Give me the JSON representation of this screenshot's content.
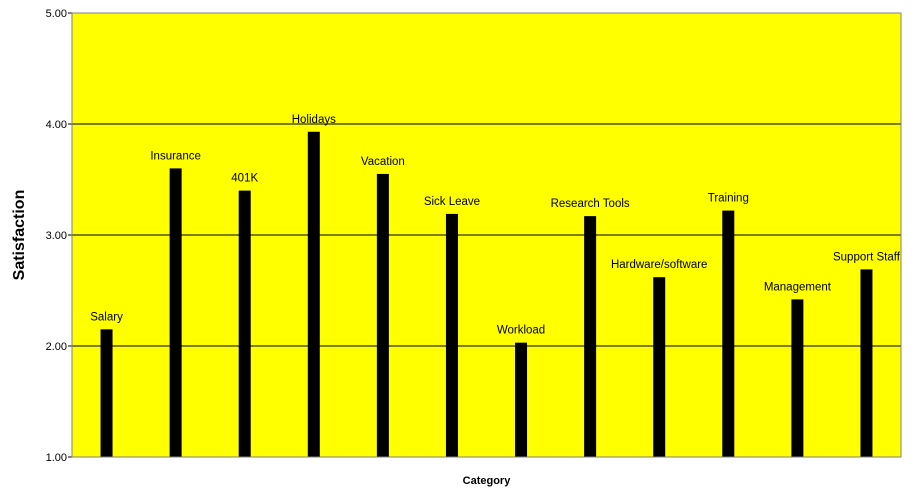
{
  "chart_data": {
    "type": "bar",
    "title": "",
    "xlabel": "Category",
    "ylabel": "Satisfaction",
    "ylim": [
      1.0,
      5.0
    ],
    "yticks": [
      1.0,
      2.0,
      3.0,
      4.0,
      5.0
    ],
    "ytick_labels": [
      "1.00",
      "2.00",
      "3.00",
      "4.00",
      "5.00"
    ],
    "grid": true,
    "legend": "none",
    "categories": [
      "Salary",
      "Insurance",
      "401K",
      "Holidays",
      "Vacation",
      "Sick Leave",
      "Workload",
      "Research Tools",
      "Hardware/software",
      "Training",
      "Management",
      "Support Staff"
    ],
    "values": [
      2.15,
      3.6,
      3.4,
      3.93,
      3.55,
      3.19,
      2.03,
      3.17,
      2.62,
      3.22,
      2.42,
      2.69
    ],
    "colors": {
      "plot_background": "#ffff00",
      "bar": "#000000",
      "gridline": "#000000",
      "page_background": "#ffffff"
    }
  }
}
